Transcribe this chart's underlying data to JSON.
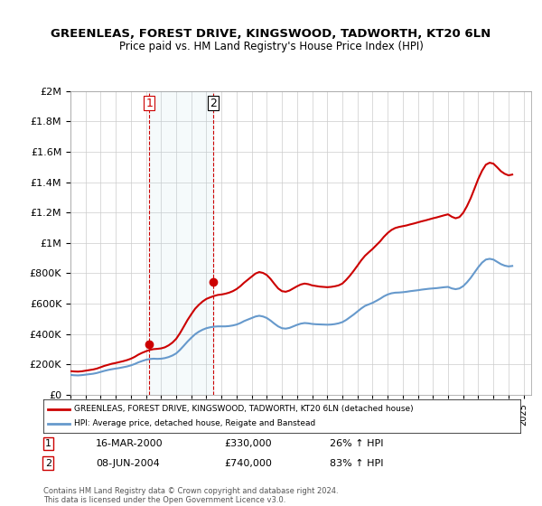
{
  "title": "GREENLEAS, FOREST DRIVE, KINGSWOOD, TADWORTH, KT20 6LN",
  "subtitle": "Price paid vs. HM Land Registry's House Price Index (HPI)",
  "legend_line1": "GREENLEAS, FOREST DRIVE, KINGSWOOD, TADWORTH, KT20 6LN (detached house)",
  "legend_line2": "HPI: Average price, detached house, Reigate and Banstead",
  "annotation1_label": "1",
  "annotation1_date": "16-MAR-2000",
  "annotation1_price": "£330,000",
  "annotation1_hpi": "26% ↑ HPI",
  "annotation2_label": "2",
  "annotation2_date": "08-JUN-2004",
  "annotation2_price": "£740,000",
  "annotation2_hpi": "83% ↑ HPI",
  "footer": "Contains HM Land Registry data © Crown copyright and database right 2024.\nThis data is licensed under the Open Government Licence v3.0.",
  "red_color": "#cc0000",
  "blue_color": "#6699cc",
  "marker_color": "#cc0000",
  "vline_color": "#cc0000",
  "bg_color": "#ffffff",
  "grid_color": "#cccccc",
  "xlim": [
    1995.0,
    2025.5
  ],
  "ylim": [
    0,
    2000000
  ],
  "purchase1_x": 2000.21,
  "purchase1_y": 330000,
  "purchase2_x": 2004.44,
  "purchase2_y": 740000,
  "hpi_data": {
    "x": [
      1995.0,
      1995.25,
      1995.5,
      1995.75,
      1996.0,
      1996.25,
      1996.5,
      1996.75,
      1997.0,
      1997.25,
      1997.5,
      1997.75,
      1998.0,
      1998.25,
      1998.5,
      1998.75,
      1999.0,
      1999.25,
      1999.5,
      1999.75,
      2000.0,
      2000.25,
      2000.5,
      2000.75,
      2001.0,
      2001.25,
      2001.5,
      2001.75,
      2002.0,
      2002.25,
      2002.5,
      2002.75,
      2003.0,
      2003.25,
      2003.5,
      2003.75,
      2004.0,
      2004.25,
      2004.5,
      2004.75,
      2005.0,
      2005.25,
      2005.5,
      2005.75,
      2006.0,
      2006.25,
      2006.5,
      2006.75,
      2007.0,
      2007.25,
      2007.5,
      2007.75,
      2008.0,
      2008.25,
      2008.5,
      2008.75,
      2009.0,
      2009.25,
      2009.5,
      2009.75,
      2010.0,
      2010.25,
      2010.5,
      2010.75,
      2011.0,
      2011.25,
      2011.5,
      2011.75,
      2012.0,
      2012.25,
      2012.5,
      2012.75,
      2013.0,
      2013.25,
      2013.5,
      2013.75,
      2014.0,
      2014.25,
      2014.5,
      2014.75,
      2015.0,
      2015.25,
      2015.5,
      2015.75,
      2016.0,
      2016.25,
      2016.5,
      2016.75,
      2017.0,
      2017.25,
      2017.5,
      2017.75,
      2018.0,
      2018.25,
      2018.5,
      2018.75,
      2019.0,
      2019.25,
      2019.5,
      2019.75,
      2020.0,
      2020.25,
      2020.5,
      2020.75,
      2021.0,
      2021.25,
      2021.5,
      2021.75,
      2022.0,
      2022.25,
      2022.5,
      2022.75,
      2023.0,
      2023.25,
      2023.5,
      2023.75,
      2024.0,
      2024.25
    ],
    "y": [
      130000,
      128000,
      127000,
      129000,
      132000,
      135000,
      138000,
      143000,
      150000,
      157000,
      163000,
      168000,
      172000,
      176000,
      181000,
      186000,
      193000,
      202000,
      213000,
      222000,
      230000,
      235000,
      237000,
      236000,
      237000,
      241000,
      248000,
      258000,
      272000,
      295000,
      322000,
      350000,
      375000,
      398000,
      415000,
      428000,
      438000,
      444000,
      448000,
      450000,
      450000,
      450000,
      452000,
      456000,
      462000,
      472000,
      485000,
      495000,
      505000,
      515000,
      520000,
      515000,
      505000,
      488000,
      468000,
      450000,
      438000,
      435000,
      440000,
      450000,
      460000,
      468000,
      472000,
      470000,
      466000,
      464000,
      463000,
      462000,
      461000,
      462000,
      465000,
      470000,
      478000,
      492000,
      510000,
      528000,
      548000,
      568000,
      585000,
      595000,
      605000,
      618000,
      632000,
      648000,
      660000,
      668000,
      672000,
      673000,
      675000,
      678000,
      682000,
      685000,
      688000,
      692000,
      695000,
      698000,
      700000,
      702000,
      705000,
      708000,
      710000,
      700000,
      695000,
      700000,
      715000,
      740000,
      770000,
      805000,
      840000,
      870000,
      890000,
      895000,
      890000,
      875000,
      860000,
      850000,
      845000,
      848000
    ]
  },
  "red_data": {
    "x": [
      1995.0,
      1995.25,
      1995.5,
      1995.75,
      1996.0,
      1996.25,
      1996.5,
      1996.75,
      1997.0,
      1997.25,
      1997.5,
      1997.75,
      1998.0,
      1998.25,
      1998.5,
      1998.75,
      1999.0,
      1999.25,
      1999.5,
      1999.75,
      2000.0,
      2000.25,
      2000.5,
      2000.75,
      2001.0,
      2001.25,
      2001.5,
      2001.75,
      2002.0,
      2002.25,
      2002.5,
      2002.75,
      2003.0,
      2003.25,
      2003.5,
      2003.75,
      2004.0,
      2004.25,
      2004.5,
      2004.75,
      2005.0,
      2005.25,
      2005.5,
      2005.75,
      2006.0,
      2006.25,
      2006.5,
      2006.75,
      2007.0,
      2007.25,
      2007.5,
      2007.75,
      2008.0,
      2008.25,
      2008.5,
      2008.75,
      2009.0,
      2009.25,
      2009.5,
      2009.75,
      2010.0,
      2010.25,
      2010.5,
      2010.75,
      2011.0,
      2011.25,
      2011.5,
      2011.75,
      2012.0,
      2012.25,
      2012.5,
      2012.75,
      2013.0,
      2013.25,
      2013.5,
      2013.75,
      2014.0,
      2014.25,
      2014.5,
      2014.75,
      2015.0,
      2015.25,
      2015.5,
      2015.75,
      2016.0,
      2016.25,
      2016.5,
      2016.75,
      2017.0,
      2017.25,
      2017.5,
      2017.75,
      2018.0,
      2018.25,
      2018.5,
      2018.75,
      2019.0,
      2019.25,
      2019.5,
      2019.75,
      2020.0,
      2020.25,
      2020.5,
      2020.75,
      2021.0,
      2021.25,
      2021.5,
      2021.75,
      2022.0,
      2022.25,
      2022.5,
      2022.75,
      2023.0,
      2023.25,
      2023.5,
      2023.75,
      2024.0,
      2024.25
    ],
    "y": [
      155000,
      153000,
      152000,
      154000,
      158000,
      162000,
      166000,
      172000,
      181000,
      190000,
      197000,
      204000,
      209000,
      215000,
      221000,
      228000,
      237000,
      249000,
      264000,
      276000,
      286000,
      295000,
      300000,
      302000,
      305000,
      312000,
      325000,
      343000,
      368000,
      405000,
      448000,
      492000,
      530000,
      566000,
      592000,
      614000,
      631000,
      641000,
      650000,
      657000,
      660000,
      665000,
      672000,
      682000,
      696000,
      715000,
      738000,
      758000,
      778000,
      798000,
      808000,
      802000,
      788000,
      762000,
      730000,
      700000,
      682000,
      678000,
      686000,
      700000,
      714000,
      726000,
      732000,
      728000,
      720000,
      716000,
      712000,
      710000,
      708000,
      710000,
      714000,
      720000,
      732000,
      756000,
      784000,
      816000,
      850000,
      885000,
      915000,
      938000,
      960000,
      985000,
      1010000,
      1040000,
      1065000,
      1085000,
      1098000,
      1105000,
      1110000,
      1115000,
      1122000,
      1128000,
      1135000,
      1142000,
      1148000,
      1155000,
      1162000,
      1168000,
      1175000,
      1182000,
      1188000,
      1172000,
      1162000,
      1170000,
      1198000,
      1242000,
      1295000,
      1358000,
      1422000,
      1475000,
      1515000,
      1528000,
      1522000,
      1498000,
      1472000,
      1455000,
      1445000,
      1450000
    ]
  }
}
